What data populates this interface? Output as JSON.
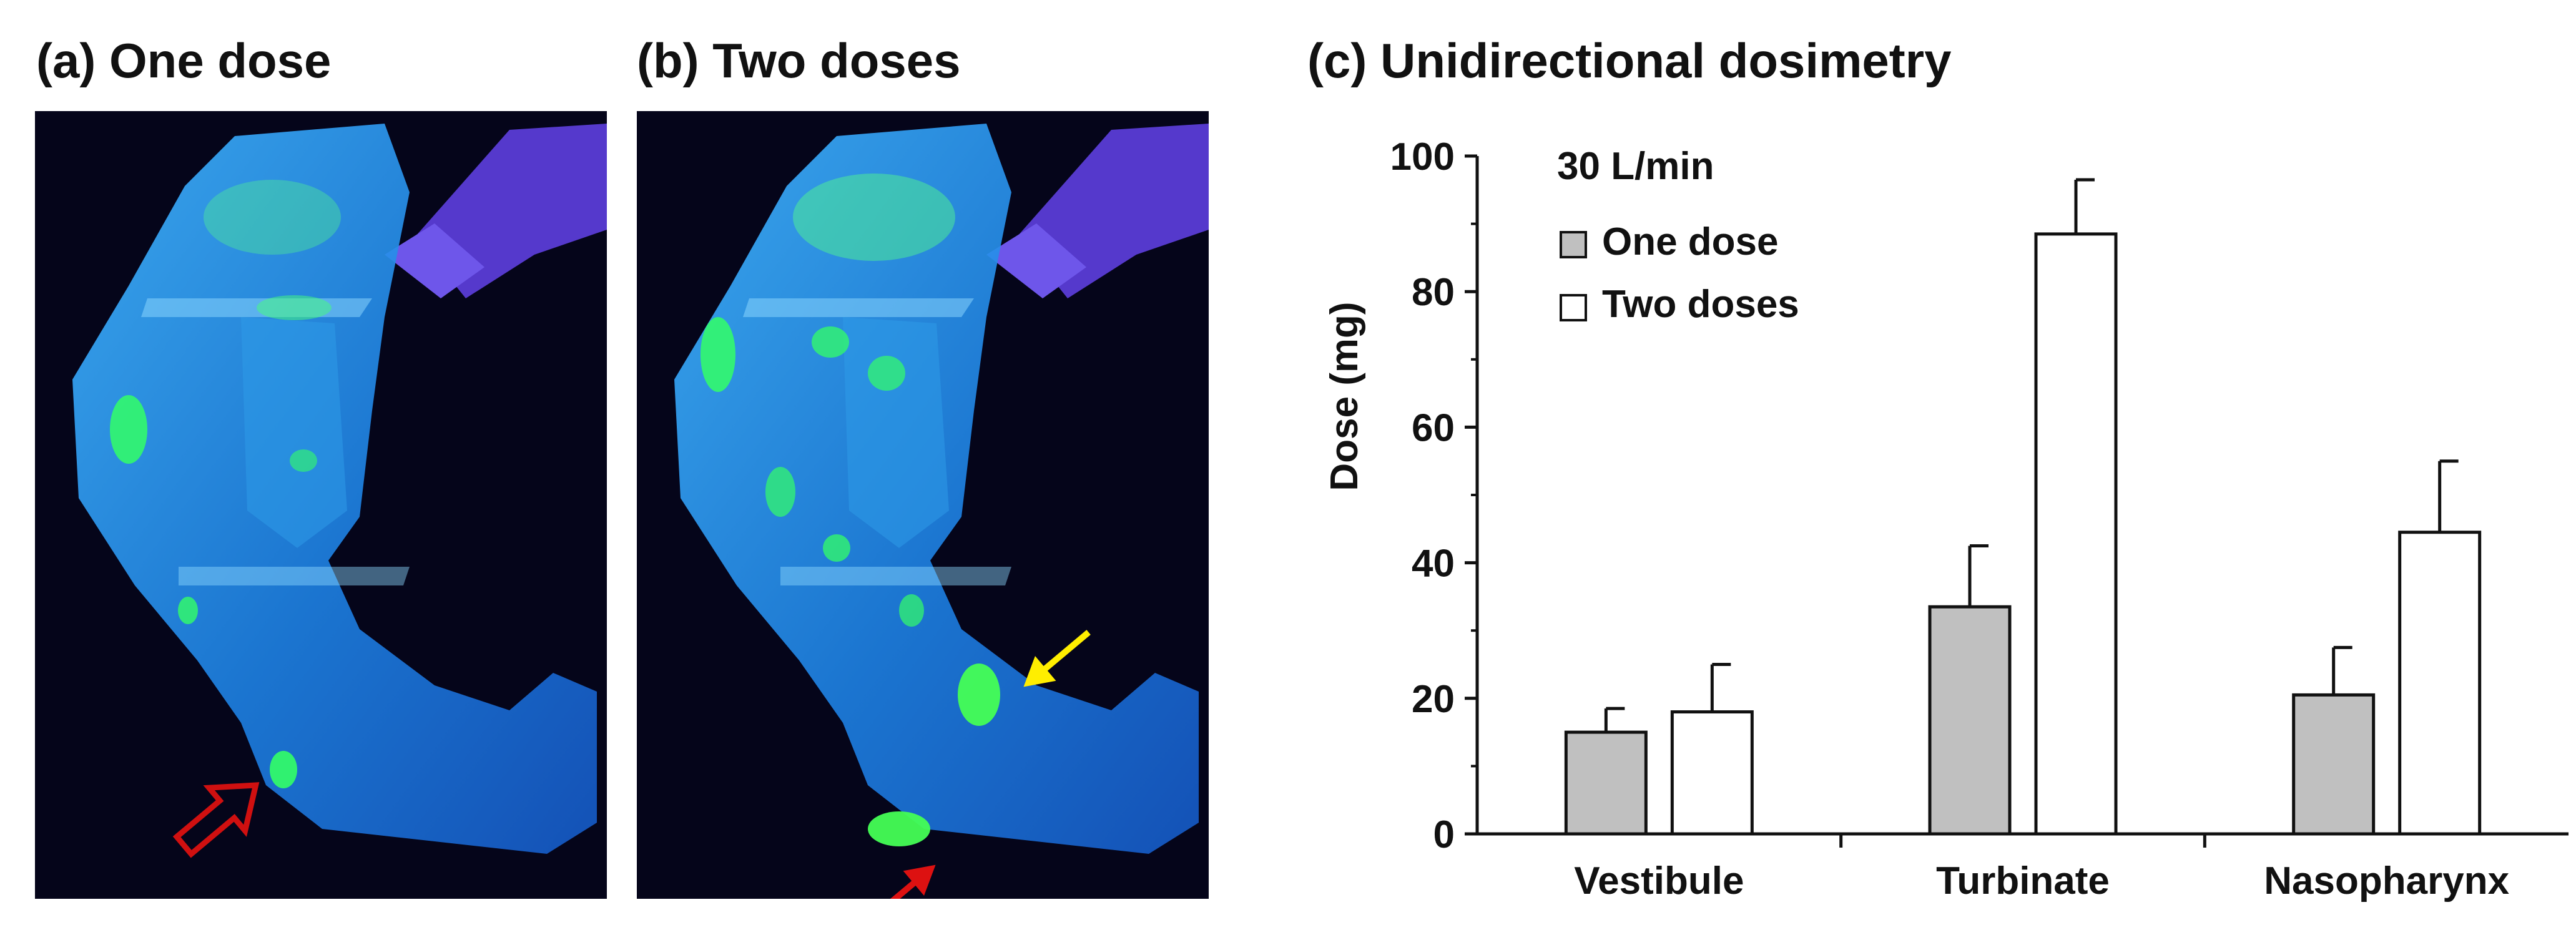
{
  "panels": {
    "a": {
      "title": "(a) One dose"
    },
    "b": {
      "title": "(b) Two doses"
    },
    "c": {
      "title": "(c) Unidirectional dosimetry"
    }
  },
  "photo_markers": {
    "a": [
      {
        "name": "red-outline-arrow-icon",
        "color": "#cc1111"
      }
    ],
    "b": [
      {
        "name": "yellow-arrow-icon",
        "color": "#ffee00"
      },
      {
        "name": "red-arrow-icon",
        "color": "#dd1111"
      }
    ]
  },
  "chart_data": {
    "type": "bar",
    "title": "(c) Unidirectional dosimetry",
    "annotation": "30 L/min",
    "xlabel": "",
    "ylabel": "Dose (mg)",
    "ylim": [
      0,
      100
    ],
    "yticks": [
      0,
      20,
      40,
      60,
      80,
      100
    ],
    "categories": [
      "Vestibule",
      "Turbinate",
      "Nasopharynx"
    ],
    "series": [
      {
        "name": "One dose",
        "color": "#c0c0c0",
        "values": [
          15,
          33.5,
          20.5
        ],
        "errors": [
          3.5,
          9,
          7
        ]
      },
      {
        "name": "Two doses",
        "color": "#ffffff",
        "values": [
          18,
          88.5,
          44.5
        ],
        "errors": [
          7,
          8,
          10.5
        ]
      }
    ],
    "legend_position": "top-left"
  }
}
